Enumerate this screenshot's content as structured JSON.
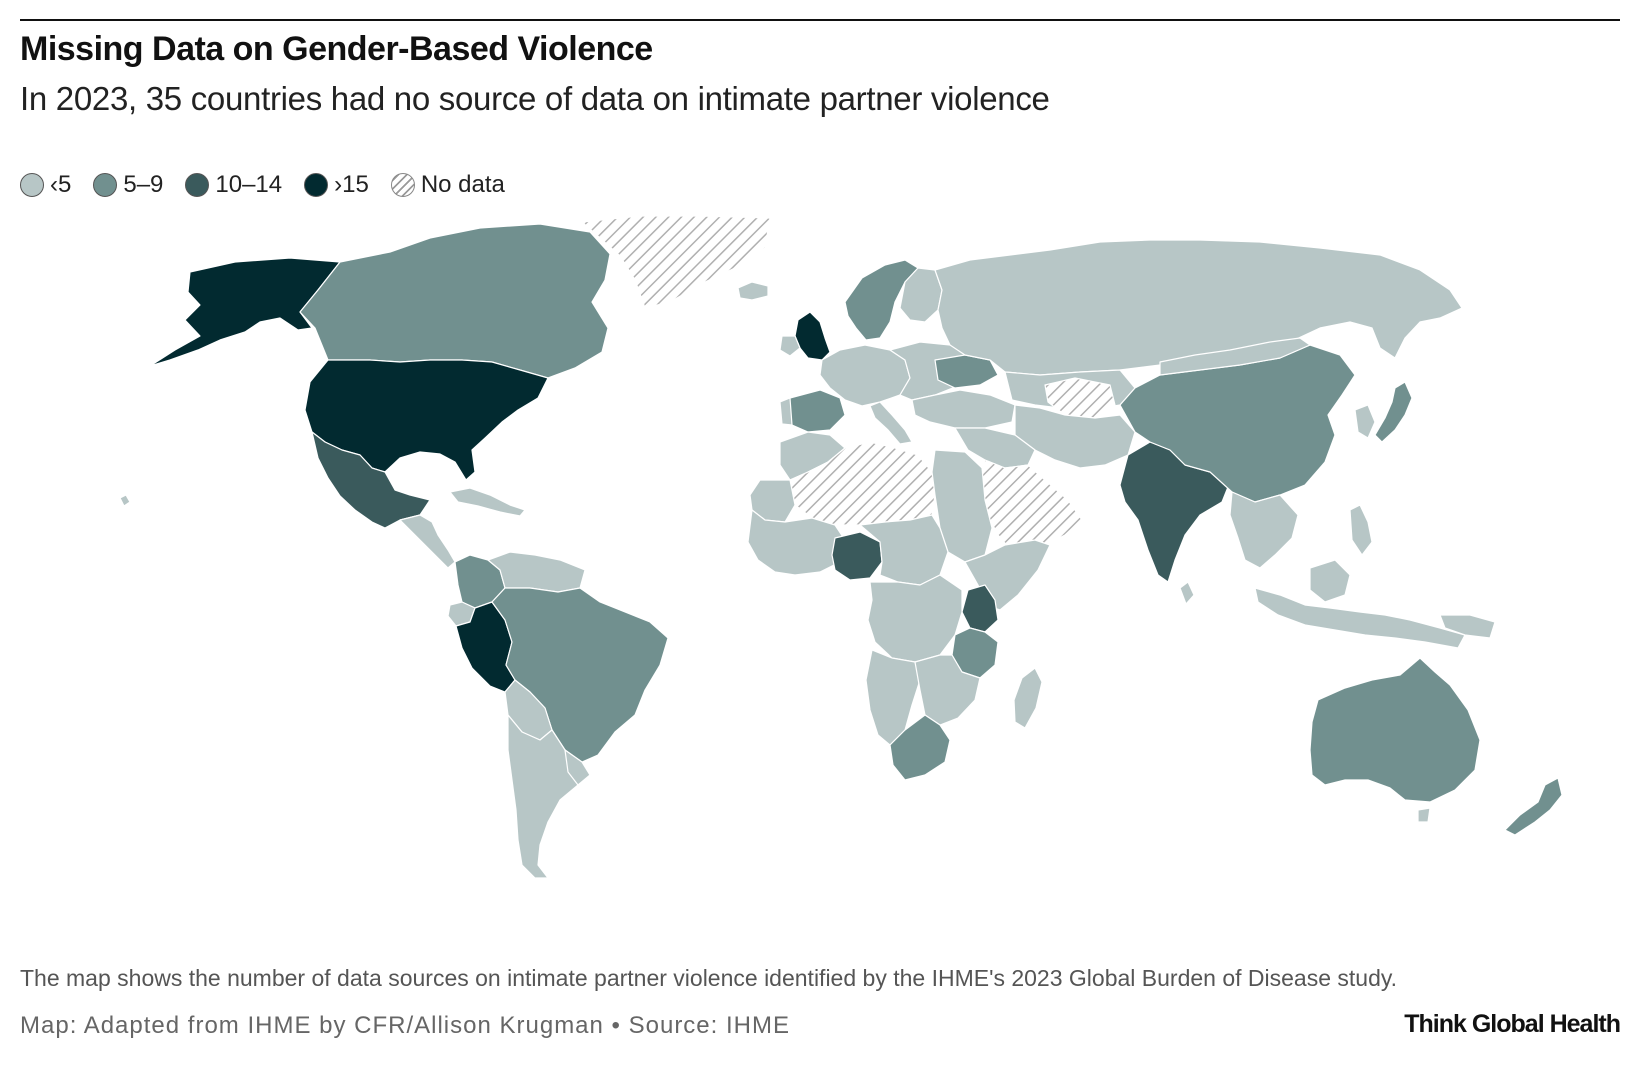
{
  "header": {
    "title": "Missing Data on Gender-Based Violence",
    "subtitle": "In 2023, 35 countries had no source of data on intimate partner violence"
  },
  "legend": {
    "items": [
      {
        "label": "‹5",
        "color": "#b7c6c6"
      },
      {
        "label": "5–9",
        "color": "#71908f"
      },
      {
        "label": "10–14",
        "color": "#3a5a5c"
      },
      {
        "label": "›15",
        "color": "#022a30"
      },
      {
        "label": "No data",
        "color": "hatch"
      }
    ]
  },
  "colors": {
    "lt5": "#b7c6c6",
    "c5to9": "#71908f",
    "c10to14": "#3a5a5c",
    "gt15": "#022a30",
    "border": "#ffffff"
  },
  "regions": [
    {
      "name": "Alaska",
      "category": "gt15"
    },
    {
      "name": "Canada",
      "category": "c5to9"
    },
    {
      "name": "Greenland",
      "category": "nodata"
    },
    {
      "name": "United States",
      "category": "gt15"
    },
    {
      "name": "Mexico",
      "category": "c10to14"
    },
    {
      "name": "Central America",
      "category": "lt5"
    },
    {
      "name": "Peru",
      "category": "gt15"
    },
    {
      "name": "Brazil",
      "category": "c5to9"
    },
    {
      "name": "Colombia",
      "category": "c5to9"
    },
    {
      "name": "Argentina",
      "category": "lt5"
    },
    {
      "name": "United Kingdom",
      "category": "gt15"
    },
    {
      "name": "Spain",
      "category": "c5to9"
    },
    {
      "name": "Scandinavia",
      "category": "c5to9"
    },
    {
      "name": "Ukraine",
      "category": "c5to9"
    },
    {
      "name": "Russia",
      "category": "lt5"
    },
    {
      "name": "Sahara",
      "category": "nodata"
    },
    {
      "name": "Arabian Peninsula",
      "category": "nodata"
    },
    {
      "name": "Central Asia",
      "category": "nodata"
    },
    {
      "name": "Nigeria",
      "category": "c10to14"
    },
    {
      "name": "Kenya",
      "category": "c10to14"
    },
    {
      "name": "Tanzania",
      "category": "c5to9"
    },
    {
      "name": "South Africa",
      "category": "c5to9"
    },
    {
      "name": "India",
      "category": "c10to14"
    },
    {
      "name": "China",
      "category": "c5to9"
    },
    {
      "name": "Japan",
      "category": "c5to9"
    },
    {
      "name": "Australia",
      "category": "c5to9"
    },
    {
      "name": "New Zealand",
      "category": "c5to9"
    }
  ],
  "footer": {
    "note": "The map shows the number of data sources on intimate partner violence identified by the IHME's 2023 Global Burden of Disease study.",
    "credit": "Map: Adapted from IHME by CFR/Allison Krugman • Source: IHME",
    "brand": "Think Global Health"
  }
}
